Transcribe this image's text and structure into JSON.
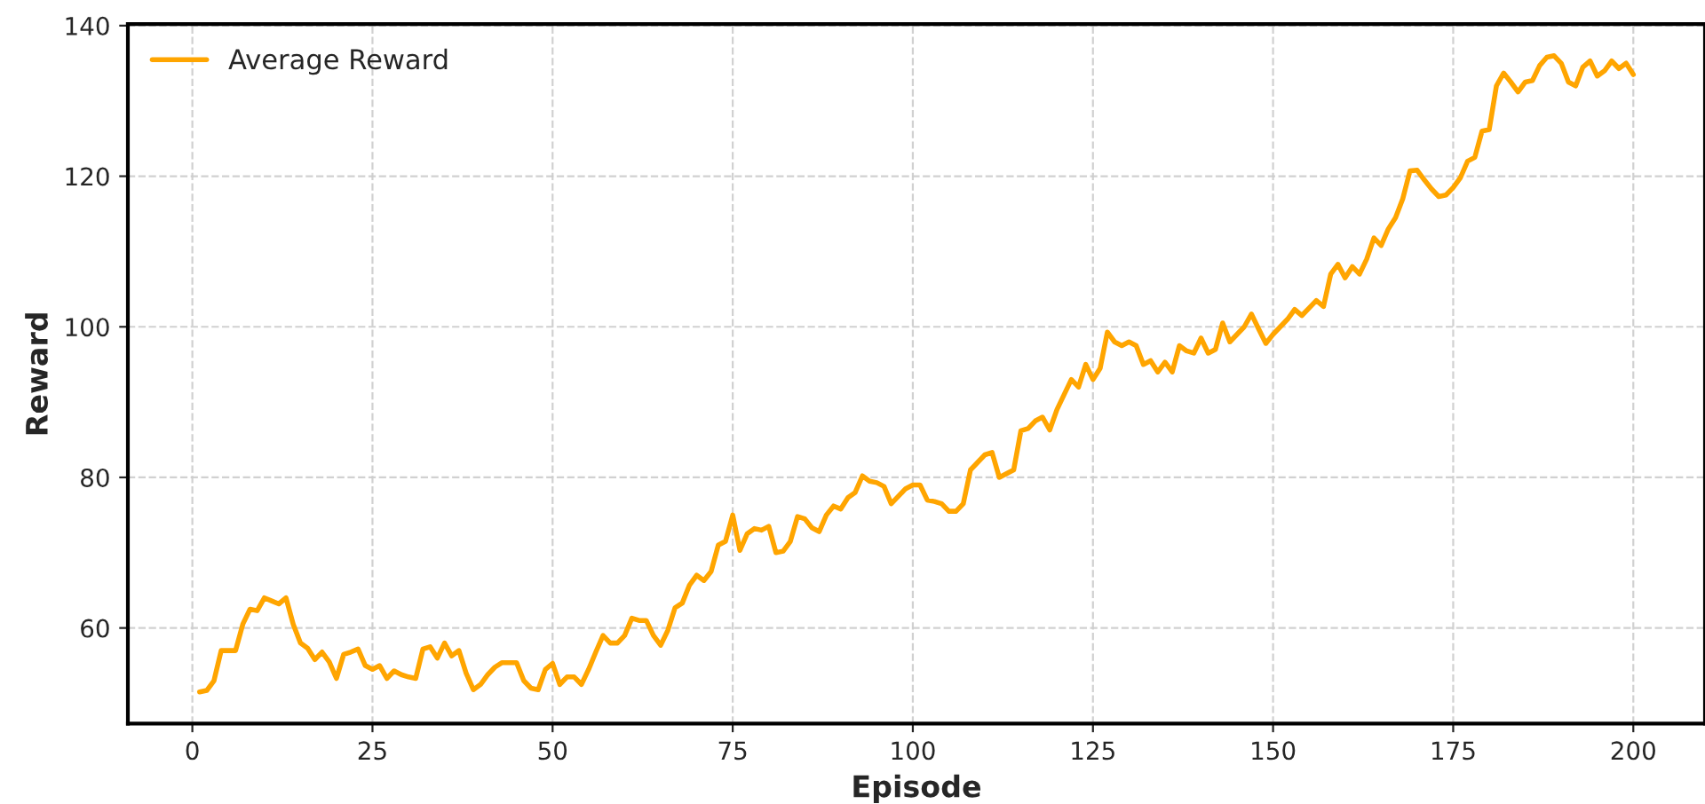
{
  "chart_data": {
    "type": "line",
    "xlabel": "Episode",
    "ylabel": "Reward",
    "x": [
      1,
      2,
      3,
      4,
      5,
      6,
      7,
      8,
      9,
      10,
      11,
      12,
      13,
      14,
      15,
      16,
      17,
      18,
      19,
      20,
      21,
      22,
      23,
      24,
      25,
      26,
      27,
      28,
      29,
      30,
      31,
      32,
      33,
      34,
      35,
      36,
      37,
      38,
      39,
      40,
      41,
      42,
      43,
      44,
      45,
      46,
      47,
      48,
      49,
      50,
      51,
      52,
      53,
      54,
      55,
      56,
      57,
      58,
      59,
      60,
      61,
      62,
      63,
      64,
      65,
      66,
      67,
      68,
      69,
      70,
      71,
      72,
      73,
      74,
      75,
      76,
      77,
      78,
      79,
      80,
      81,
      82,
      83,
      84,
      85,
      86,
      87,
      88,
      89,
      90,
      91,
      92,
      93,
      94,
      95,
      96,
      97,
      98,
      99,
      100,
      101,
      102,
      103,
      104,
      105,
      106,
      107,
      108,
      109,
      110,
      111,
      112,
      113,
      114,
      115,
      116,
      117,
      118,
      119,
      120,
      121,
      122,
      123,
      124,
      125,
      126,
      127,
      128,
      129,
      130,
      131,
      132,
      133,
      134,
      135,
      136,
      137,
      138,
      139,
      140,
      141,
      142,
      143,
      144,
      145,
      146,
      147,
      148,
      149,
      150,
      151,
      152,
      153,
      154,
      155,
      156,
      157,
      158,
      159,
      160,
      161,
      162,
      163,
      164,
      165,
      166,
      167,
      168,
      169,
      170,
      171,
      172,
      173,
      174,
      175,
      176,
      177,
      178,
      179,
      180,
      181,
      182,
      183,
      184,
      185,
      186,
      187,
      188,
      189,
      190,
      191,
      192,
      193,
      194,
      195,
      196,
      197,
      198,
      199,
      200
    ],
    "series": [
      {
        "name": "Average Reward",
        "color": "#ffa500",
        "values": [
          51.5,
          51.7,
          53,
          57,
          57,
          57,
          60.5,
          62.5,
          62.3,
          64,
          63.6,
          63.2,
          64,
          60.5,
          58,
          57.3,
          55.8,
          56.8,
          55.5,
          53.3,
          56.5,
          56.8,
          57.2,
          55,
          54.5,
          55,
          53.3,
          54.3,
          53.8,
          53.5,
          53.3,
          57.2,
          57.5,
          56,
          58,
          56.3,
          57,
          54,
          51.8,
          52.5,
          53.8,
          54.8,
          55.4,
          55.4,
          55.4,
          53,
          52,
          51.8,
          54.5,
          55.3,
          52.5,
          53.5,
          53.5,
          52.5,
          54.5,
          56.8,
          59,
          58,
          58,
          59,
          61.3,
          61,
          61,
          59,
          57.7,
          59.7,
          62.7,
          63.3,
          65.7,
          67,
          66.3,
          67.5,
          71,
          71.5,
          75,
          70.3,
          72.5,
          73.2,
          73,
          73.5,
          70,
          70.2,
          71.5,
          74.8,
          74.5,
          73.3,
          72.8,
          75,
          76.2,
          75.8,
          77.3,
          78,
          80.2,
          79.5,
          79.3,
          78.8,
          76.5,
          77.5,
          78.5,
          79,
          79,
          77,
          76.8,
          76.5,
          75.5,
          75.5,
          76.5,
          81,
          82,
          83,
          83.3,
          80,
          80.5,
          81,
          86.2,
          86.5,
          87.5,
          88,
          86.3,
          89,
          91,
          93,
          92,
          95,
          93,
          94.5,
          99.3,
          98,
          97.5,
          98,
          97.5,
          95,
          95.5,
          94,
          95.3,
          94,
          97.5,
          96.8,
          96.5,
          98.5,
          96.5,
          97,
          100.5,
          98,
          99,
          100,
          101.7,
          99.7,
          97.8,
          99,
          100,
          101,
          102.3,
          101.5,
          102.5,
          103.5,
          102.7,
          107,
          108.3,
          106.5,
          108,
          107,
          109,
          111.8,
          110.8,
          113,
          114.5,
          117,
          120.7,
          120.8,
          119.5,
          118.3,
          117.3,
          117.5,
          118.5,
          119.8,
          122,
          122.5,
          126,
          126.2,
          132,
          133.7,
          132.5,
          131.2,
          132.5,
          132.7,
          134.7,
          135.8,
          136,
          135,
          132.5,
          132,
          134.5,
          135.3,
          133.3,
          134,
          135.3,
          134.3,
          135,
          133.5
        ]
      }
    ],
    "xlim": [
      -8.95,
      209.95
    ],
    "xticks": [
      0,
      25,
      50,
      75,
      100,
      125,
      150,
      175,
      200
    ],
    "ylim": [
      47.3,
      140.2
    ],
    "yticks": [
      60,
      80,
      100,
      120,
      140
    ],
    "grid": true,
    "legend": "top left",
    "line_style": "solid",
    "marker": "none"
  }
}
